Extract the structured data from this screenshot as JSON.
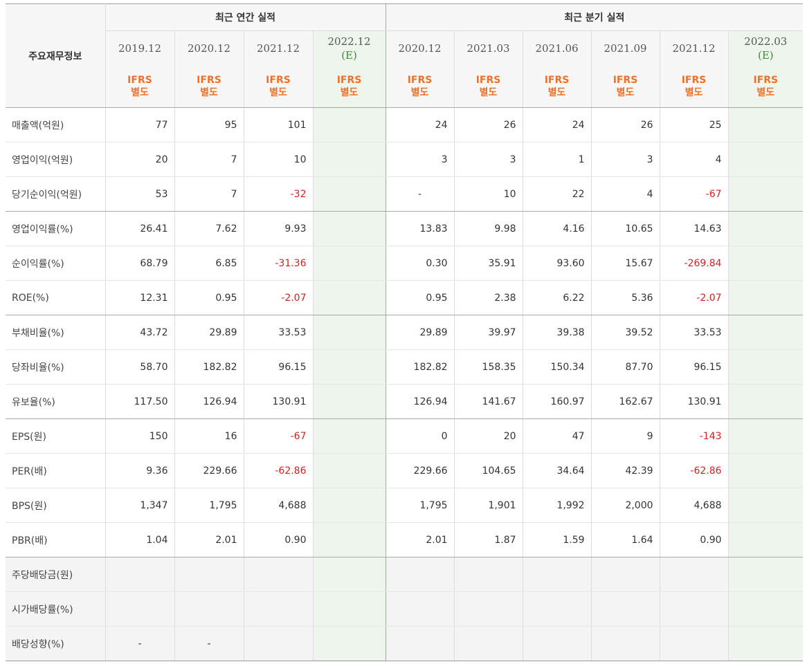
{
  "header": {
    "row_label": "주요재무정보",
    "annual_group": "최근 연간 실적",
    "quarter_group": "최근 분기 실적",
    "annual_periods": [
      {
        "date": "2019.12",
        "est": ""
      },
      {
        "date": "2020.12",
        "est": ""
      },
      {
        "date": "2021.12",
        "est": ""
      },
      {
        "date": "2022.12",
        "est": "(E)"
      }
    ],
    "quarter_periods": [
      {
        "date": "2020.12",
        "est": ""
      },
      {
        "date": "2021.03",
        "est": ""
      },
      {
        "date": "2021.06",
        "est": ""
      },
      {
        "date": "2021.09",
        "est": ""
      },
      {
        "date": "2021.12",
        "est": ""
      },
      {
        "date": "2022.03",
        "est": "(E)"
      }
    ],
    "basis_line1": "IFRS",
    "basis_line2": "별도"
  },
  "rows": [
    {
      "label": "매출액(억원)",
      "values": [
        "77",
        "95",
        "101",
        "",
        "24",
        "26",
        "24",
        "26",
        "25",
        ""
      ]
    },
    {
      "label": "영업이익(억원)",
      "values": [
        "20",
        "7",
        "10",
        "",
        "3",
        "3",
        "1",
        "3",
        "4",
        ""
      ]
    },
    {
      "label": "당기순이익(억원)",
      "values": [
        "53",
        "7",
        "-32",
        "",
        "-",
        "10",
        "22",
        "4",
        "-67",
        ""
      ]
    },
    {
      "label": "영업이익률(%)",
      "values": [
        "26.41",
        "7.62",
        "9.93",
        "",
        "13.83",
        "9.98",
        "4.16",
        "10.65",
        "14.63",
        ""
      ]
    },
    {
      "label": "순이익률(%)",
      "values": [
        "68.79",
        "6.85",
        "-31.36",
        "",
        "0.30",
        "35.91",
        "93.60",
        "15.67",
        "-269.84",
        ""
      ]
    },
    {
      "label": "ROE(%)",
      "values": [
        "12.31",
        "0.95",
        "-2.07",
        "",
        "0.95",
        "2.38",
        "6.22",
        "5.36",
        "-2.07",
        ""
      ]
    },
    {
      "label": "부채비율(%)",
      "values": [
        "43.72",
        "29.89",
        "33.53",
        "",
        "29.89",
        "39.97",
        "39.38",
        "39.52",
        "33.53",
        ""
      ]
    },
    {
      "label": "당좌비율(%)",
      "values": [
        "58.70",
        "182.82",
        "96.15",
        "",
        "182.82",
        "158.35",
        "150.34",
        "87.70",
        "96.15",
        ""
      ]
    },
    {
      "label": "유보율(%)",
      "values": [
        "117.50",
        "126.94",
        "130.91",
        "",
        "126.94",
        "141.67",
        "160.97",
        "162.67",
        "130.91",
        ""
      ]
    },
    {
      "label": "EPS(원)",
      "values": [
        "150",
        "16",
        "-67",
        "",
        "0",
        "20",
        "47",
        "9",
        "-143",
        ""
      ]
    },
    {
      "label": "PER(배)",
      "values": [
        "9.36",
        "229.66",
        "-62.86",
        "",
        "229.66",
        "104.65",
        "34.64",
        "42.39",
        "-62.86",
        ""
      ]
    },
    {
      "label": "BPS(원)",
      "values": [
        "1,347",
        "1,795",
        "4,688",
        "",
        "1,795",
        "1,901",
        "1,992",
        "2,000",
        "4,688",
        ""
      ]
    },
    {
      "label": "PBR(배)",
      "values": [
        "1.04",
        "2.01",
        "0.90",
        "",
        "2.01",
        "1.87",
        "1.59",
        "1.64",
        "0.90",
        ""
      ]
    },
    {
      "label": "주당배당금(원)",
      "values": [
        "",
        "",
        "",
        "",
        "",
        "",
        "",
        "",
        "",
        ""
      ]
    },
    {
      "label": "시가배당률(%)",
      "values": [
        "",
        "",
        "",
        "",
        "",
        "",
        "",
        "",
        "",
        ""
      ]
    },
    {
      "label": "배당성향(%)",
      "values": [
        "-",
        "-",
        "",
        "",
        "",
        "",
        "",
        "",
        "",
        ""
      ]
    }
  ],
  "colors": {
    "negative": "#d62020",
    "basis": "#f07028",
    "estimate_bg": "#eef5ec",
    "estimate_text": "#3a8a3a"
  }
}
